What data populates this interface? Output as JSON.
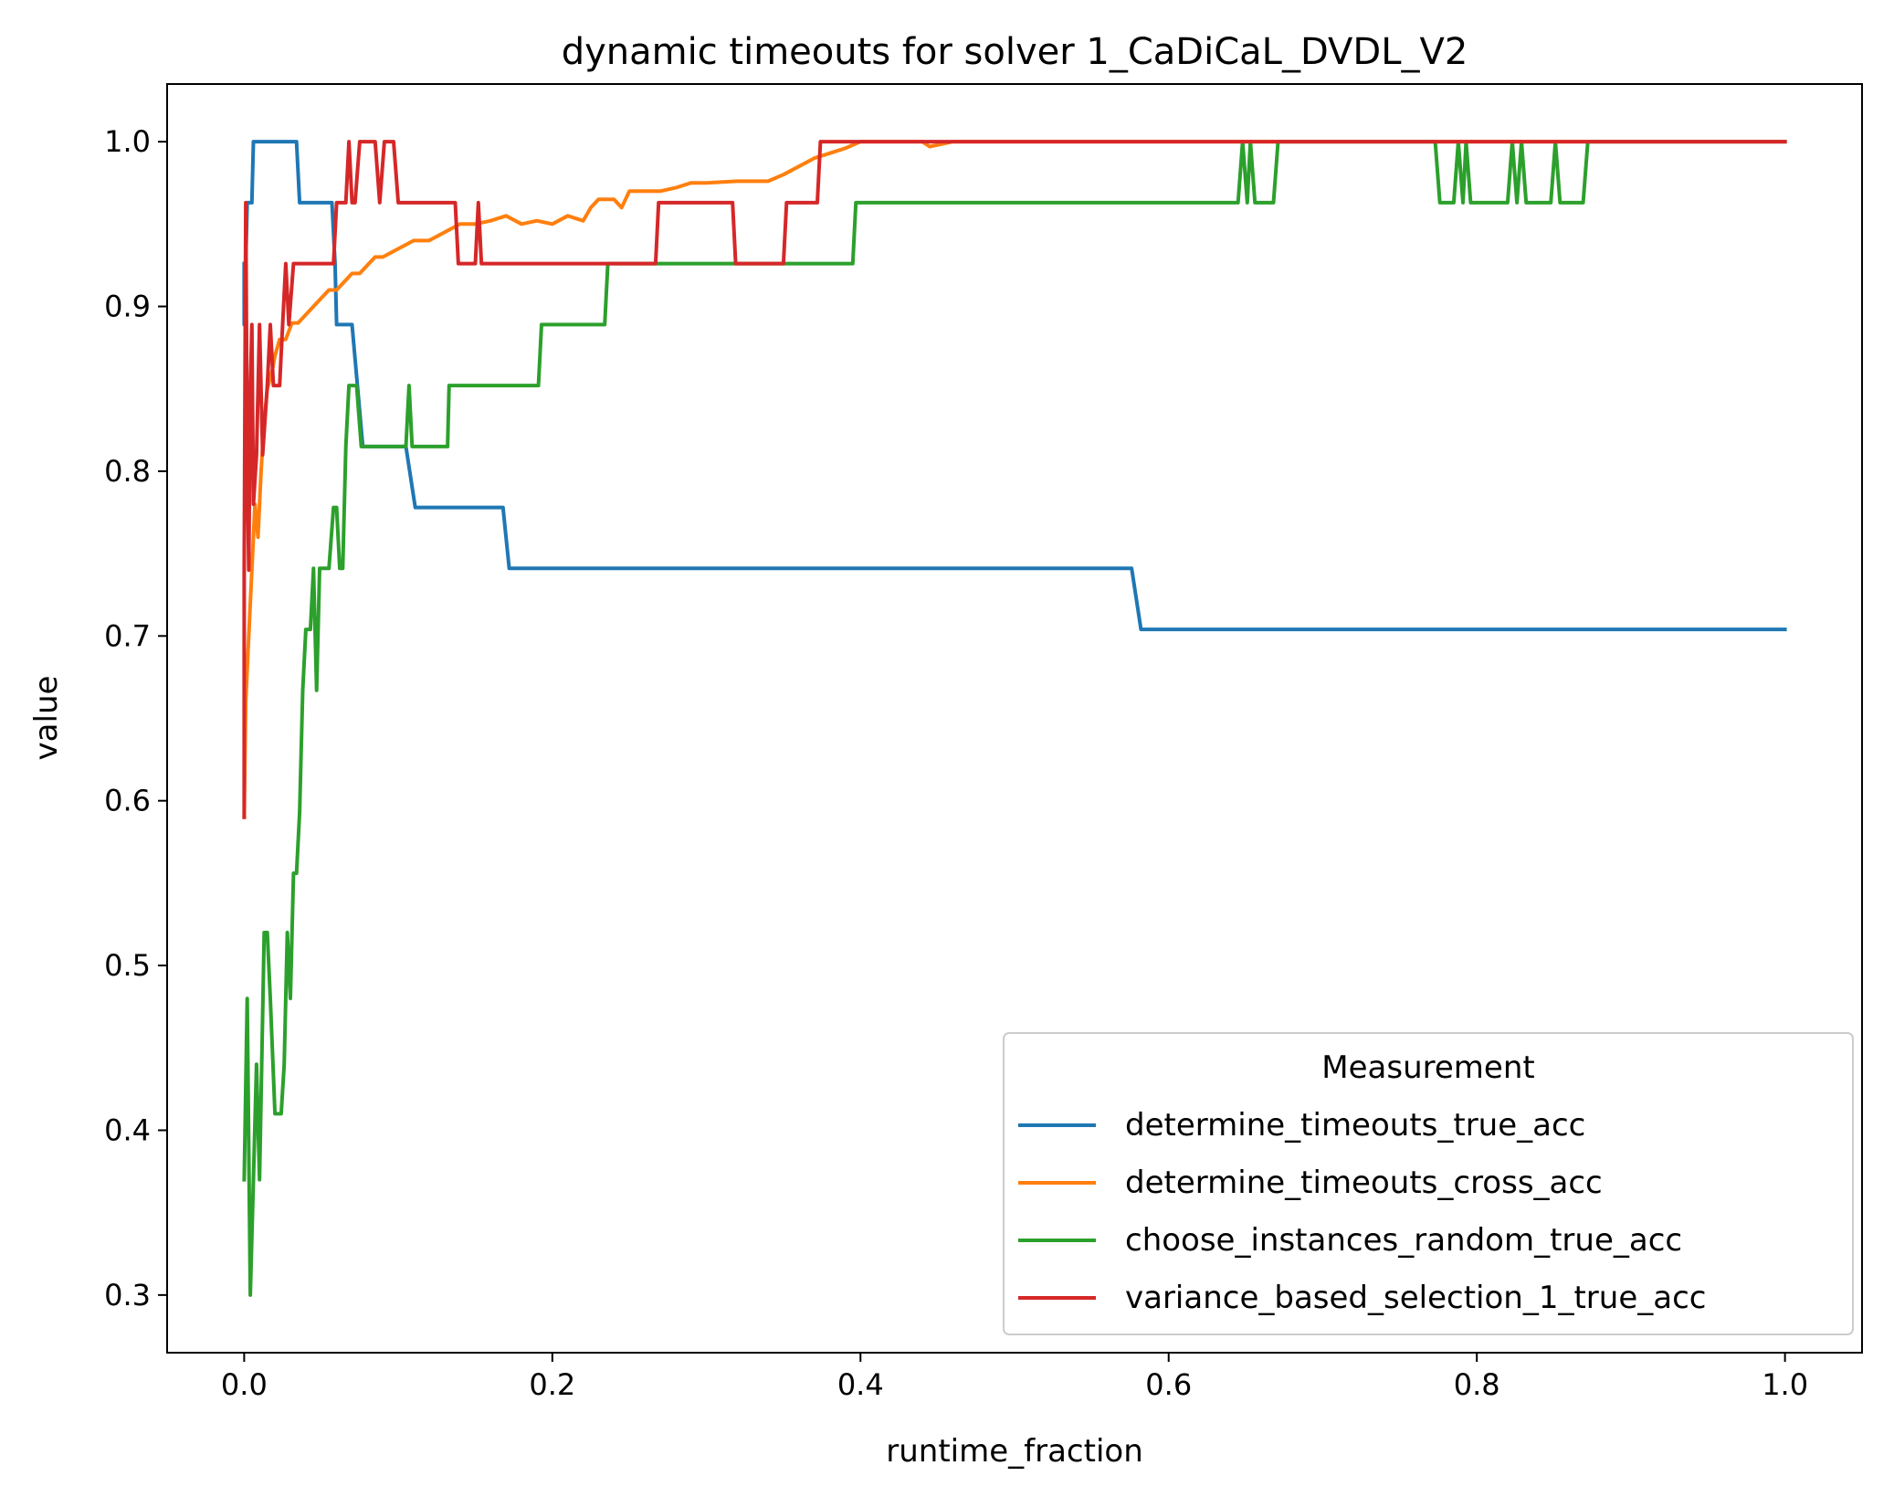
{
  "chart_data": {
    "type": "line",
    "title": "dynamic timeouts for solver 1_CaDiCaL_DVDL_V2",
    "xlabel": "runtime_fraction",
    "ylabel": "value",
    "xlim": [
      -0.05,
      1.05
    ],
    "ylim": [
      0.265,
      1.035
    ],
    "xticks": [
      0.0,
      0.2,
      0.4,
      0.6,
      0.8,
      1.0
    ],
    "xtick_labels": [
      "0.0",
      "0.2",
      "0.4",
      "0.6",
      "0.8",
      "1.0"
    ],
    "yticks": [
      0.3,
      0.4,
      0.5,
      0.6,
      0.7,
      0.8,
      0.9,
      1.0
    ],
    "ytick_labels": [
      "0.3",
      "0.4",
      "0.5",
      "0.6",
      "0.7",
      "0.8",
      "0.9",
      "1.0"
    ],
    "grid": false,
    "legend": {
      "title": "Measurement",
      "position": "lower right"
    },
    "series": [
      {
        "name": "determine_timeouts_true_acc",
        "color": "#1f77b4",
        "points": [
          [
            0.0,
            0.926
          ],
          [
            0.0,
            0.889
          ],
          [
            0.002,
            0.963
          ],
          [
            0.005,
            0.963
          ],
          [
            0.006,
            1.0
          ],
          [
            0.034,
            1.0
          ],
          [
            0.036,
            0.963
          ],
          [
            0.057,
            0.963
          ],
          [
            0.059,
            0.926
          ],
          [
            0.06,
            0.889
          ],
          [
            0.07,
            0.889
          ],
          [
            0.077,
            0.815
          ],
          [
            0.105,
            0.815
          ],
          [
            0.111,
            0.778
          ],
          [
            0.168,
            0.778
          ],
          [
            0.172,
            0.741
          ],
          [
            0.576,
            0.741
          ],
          [
            0.582,
            0.704
          ],
          [
            1.0,
            0.704
          ]
        ]
      },
      {
        "name": "determine_timeouts_cross_acc",
        "color": "#ff7f0e",
        "points": [
          [
            0.0,
            0.59
          ],
          [
            0.001,
            0.66
          ],
          [
            0.003,
            0.7
          ],
          [
            0.005,
            0.74
          ],
          [
            0.007,
            0.78
          ],
          [
            0.009,
            0.76
          ],
          [
            0.011,
            0.8
          ],
          [
            0.013,
            0.83
          ],
          [
            0.015,
            0.85
          ],
          [
            0.018,
            0.86
          ],
          [
            0.02,
            0.87
          ],
          [
            0.023,
            0.88
          ],
          [
            0.027,
            0.88
          ],
          [
            0.031,
            0.89
          ],
          [
            0.035,
            0.89
          ],
          [
            0.04,
            0.895
          ],
          [
            0.045,
            0.9
          ],
          [
            0.05,
            0.905
          ],
          [
            0.055,
            0.91
          ],
          [
            0.06,
            0.91
          ],
          [
            0.065,
            0.915
          ],
          [
            0.07,
            0.92
          ],
          [
            0.075,
            0.92
          ],
          [
            0.08,
            0.925
          ],
          [
            0.085,
            0.93
          ],
          [
            0.09,
            0.93
          ],
          [
            0.1,
            0.935
          ],
          [
            0.11,
            0.94
          ],
          [
            0.12,
            0.94
          ],
          [
            0.13,
            0.945
          ],
          [
            0.14,
            0.95
          ],
          [
            0.15,
            0.95
          ],
          [
            0.16,
            0.952
          ],
          [
            0.17,
            0.955
          ],
          [
            0.18,
            0.95
          ],
          [
            0.19,
            0.952
          ],
          [
            0.2,
            0.95
          ],
          [
            0.21,
            0.955
          ],
          [
            0.22,
            0.952
          ],
          [
            0.225,
            0.96
          ],
          [
            0.23,
            0.965
          ],
          [
            0.24,
            0.965
          ],
          [
            0.245,
            0.96
          ],
          [
            0.25,
            0.97
          ],
          [
            0.26,
            0.97
          ],
          [
            0.27,
            0.97
          ],
          [
            0.28,
            0.972
          ],
          [
            0.29,
            0.975
          ],
          [
            0.3,
            0.975
          ],
          [
            0.32,
            0.976
          ],
          [
            0.34,
            0.976
          ],
          [
            0.35,
            0.98
          ],
          [
            0.36,
            0.985
          ],
          [
            0.37,
            0.99
          ],
          [
            0.38,
            0.993
          ],
          [
            0.39,
            0.996
          ],
          [
            0.4,
            1.0
          ],
          [
            0.44,
            1.0
          ],
          [
            0.445,
            0.997
          ],
          [
            0.45,
            0.998
          ],
          [
            0.46,
            1.0
          ],
          [
            1.0,
            1.0
          ]
        ]
      },
      {
        "name": "choose_instances_random_true_acc",
        "color": "#2ca02c",
        "points": [
          [
            0.0,
            0.37
          ],
          [
            0.002,
            0.48
          ],
          [
            0.004,
            0.3
          ],
          [
            0.006,
            0.37
          ],
          [
            0.008,
            0.44
          ],
          [
            0.01,
            0.37
          ],
          [
            0.013,
            0.52
          ],
          [
            0.015,
            0.52
          ],
          [
            0.017,
            0.48
          ],
          [
            0.02,
            0.41
          ],
          [
            0.024,
            0.41
          ],
          [
            0.026,
            0.44
          ],
          [
            0.028,
            0.52
          ],
          [
            0.03,
            0.48
          ],
          [
            0.032,
            0.556
          ],
          [
            0.034,
            0.556
          ],
          [
            0.036,
            0.593
          ],
          [
            0.038,
            0.667
          ],
          [
            0.04,
            0.704
          ],
          [
            0.043,
            0.704
          ],
          [
            0.045,
            0.741
          ],
          [
            0.047,
            0.667
          ],
          [
            0.049,
            0.741
          ],
          [
            0.055,
            0.741
          ],
          [
            0.058,
            0.778
          ],
          [
            0.06,
            0.778
          ],
          [
            0.062,
            0.741
          ],
          [
            0.064,
            0.741
          ],
          [
            0.066,
            0.815
          ],
          [
            0.068,
            0.852
          ],
          [
            0.073,
            0.852
          ],
          [
            0.076,
            0.815
          ],
          [
            0.105,
            0.815
          ],
          [
            0.107,
            0.852
          ],
          [
            0.109,
            0.815
          ],
          [
            0.132,
            0.815
          ],
          [
            0.133,
            0.852
          ],
          [
            0.191,
            0.852
          ],
          [
            0.193,
            0.889
          ],
          [
            0.234,
            0.889
          ],
          [
            0.236,
            0.926
          ],
          [
            0.395,
            0.926
          ],
          [
            0.397,
            0.963
          ],
          [
            0.645,
            0.963
          ],
          [
            0.648,
            1.0
          ],
          [
            0.651,
            0.963
          ],
          [
            0.653,
            1.0
          ],
          [
            0.656,
            0.963
          ],
          [
            0.668,
            0.963
          ],
          [
            0.671,
            1.0
          ],
          [
            0.773,
            1.0
          ],
          [
            0.776,
            0.963
          ],
          [
            0.785,
            0.963
          ],
          [
            0.788,
            1.0
          ],
          [
            0.791,
            0.963
          ],
          [
            0.793,
            1.0
          ],
          [
            0.796,
            0.963
          ],
          [
            0.82,
            0.963
          ],
          [
            0.823,
            1.0
          ],
          [
            0.826,
            0.963
          ],
          [
            0.829,
            1.0
          ],
          [
            0.832,
            0.963
          ],
          [
            0.848,
            0.963
          ],
          [
            0.851,
            1.0
          ],
          [
            0.854,
            0.963
          ],
          [
            0.869,
            0.963
          ],
          [
            0.872,
            1.0
          ],
          [
            1.0,
            1.0
          ]
        ]
      },
      {
        "name": "variance_based_selection_1_true_acc",
        "color": "#d62728",
        "points": [
          [
            0.0,
            0.59
          ],
          [
            0.0,
            0.74
          ],
          [
            0.001,
            0.963
          ],
          [
            0.002,
            0.81
          ],
          [
            0.003,
            0.74
          ],
          [
            0.004,
            0.85
          ],
          [
            0.005,
            0.889
          ],
          [
            0.006,
            0.78
          ],
          [
            0.008,
            0.81
          ],
          [
            0.01,
            0.889
          ],
          [
            0.012,
            0.81
          ],
          [
            0.015,
            0.852
          ],
          [
            0.017,
            0.889
          ],
          [
            0.019,
            0.852
          ],
          [
            0.021,
            0.852
          ],
          [
            0.023,
            0.852
          ],
          [
            0.025,
            0.889
          ],
          [
            0.027,
            0.926
          ],
          [
            0.029,
            0.889
          ],
          [
            0.032,
            0.926
          ],
          [
            0.058,
            0.926
          ],
          [
            0.06,
            0.963
          ],
          [
            0.066,
            0.963
          ],
          [
            0.068,
            1.0
          ],
          [
            0.07,
            0.963
          ],
          [
            0.072,
            0.963
          ],
          [
            0.075,
            1.0
          ],
          [
            0.085,
            1.0
          ],
          [
            0.088,
            0.963
          ],
          [
            0.091,
            1.0
          ],
          [
            0.097,
            1.0
          ],
          [
            0.1,
            0.963
          ],
          [
            0.137,
            0.963
          ],
          [
            0.139,
            0.926
          ],
          [
            0.15,
            0.926
          ],
          [
            0.152,
            0.963
          ],
          [
            0.154,
            0.926
          ],
          [
            0.267,
            0.926
          ],
          [
            0.269,
            0.963
          ],
          [
            0.317,
            0.963
          ],
          [
            0.319,
            0.926
          ],
          [
            0.35,
            0.926
          ],
          [
            0.352,
            0.963
          ],
          [
            0.372,
            0.963
          ],
          [
            0.374,
            1.0
          ],
          [
            1.0,
            1.0
          ]
        ]
      }
    ]
  }
}
